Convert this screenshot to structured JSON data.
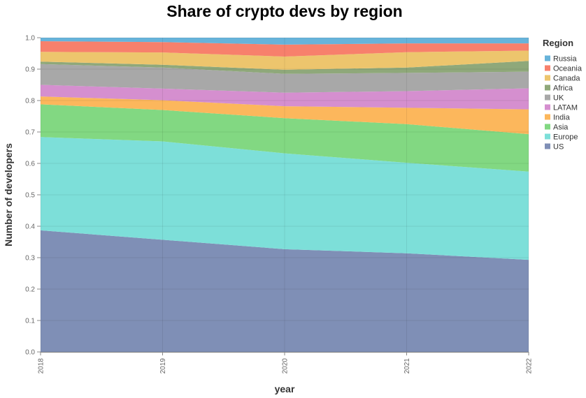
{
  "chart_data": {
    "type": "area",
    "stacked": true,
    "title": "Share of crypto devs by region",
    "xlabel": "year",
    "ylabel": "Number of developers",
    "x": [
      "2018",
      "2019",
      "2020",
      "2021",
      "2022"
    ],
    "ylim": [
      0,
      1
    ],
    "yticks": [
      "0.0",
      "0.1",
      "0.2",
      "0.3",
      "0.4",
      "0.5",
      "0.6",
      "0.7",
      "0.8",
      "0.9",
      "1.0"
    ],
    "grid": true,
    "legend": {
      "title": "Region",
      "position": "right"
    },
    "series": [
      {
        "name": "US",
        "color": "#7f8fb6",
        "values": [
          0.387,
          0.357,
          0.327,
          0.314,
          0.293
        ]
      },
      {
        "name": "Europe",
        "color": "#7ddfd9",
        "values": [
          0.297,
          0.313,
          0.305,
          0.288,
          0.281
        ]
      },
      {
        "name": "Asia",
        "color": "#82d882",
        "values": [
          0.104,
          0.1,
          0.112,
          0.123,
          0.119
        ]
      },
      {
        "name": "India",
        "color": "#fcb75c",
        "values": [
          0.025,
          0.031,
          0.038,
          0.052,
          0.079
        ]
      },
      {
        "name": "LATAM",
        "color": "#d58fcf",
        "values": [
          0.037,
          0.037,
          0.043,
          0.053,
          0.067
        ]
      },
      {
        "name": "UK",
        "color": "#a8a8a8",
        "values": [
          0.066,
          0.067,
          0.06,
          0.058,
          0.053
        ]
      },
      {
        "name": "Africa",
        "color": "#8fa87a",
        "values": [
          0.008,
          0.009,
          0.013,
          0.017,
          0.034
        ]
      },
      {
        "name": "Canada",
        "color": "#edc56d",
        "values": [
          0.031,
          0.039,
          0.042,
          0.049,
          0.033
        ]
      },
      {
        "name": "Oceania",
        "color": "#f7806c",
        "values": [
          0.034,
          0.033,
          0.038,
          0.028,
          0.023
        ]
      },
      {
        "name": "Russia",
        "color": "#67b3da",
        "values": [
          0.011,
          0.014,
          0.022,
          0.018,
          0.018
        ]
      }
    ]
  }
}
